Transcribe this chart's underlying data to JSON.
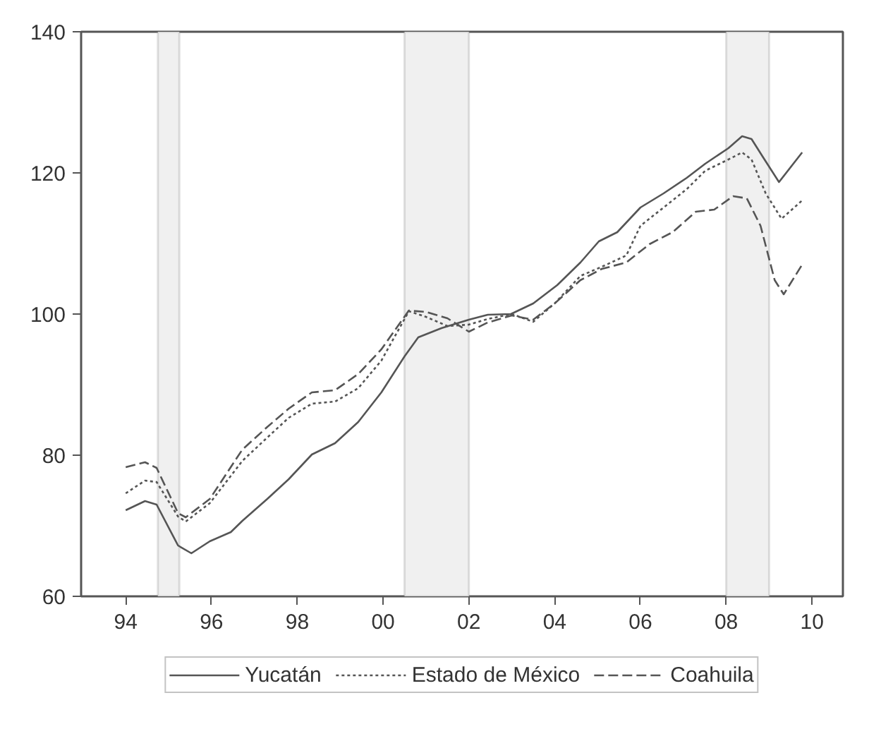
{
  "chart_data": {
    "type": "line",
    "xlim": [
      1992.96,
      2010.72
    ],
    "ylim": [
      60,
      140
    ],
    "xticks": [
      {
        "value": 1994,
        "label": "94"
      },
      {
        "value": 1996,
        "label": "96"
      },
      {
        "value": 1998,
        "label": "98"
      },
      {
        "value": 2000,
        "label": "00"
      },
      {
        "value": 2002,
        "label": "02"
      },
      {
        "value": 2004,
        "label": "04"
      },
      {
        "value": 2006,
        "label": "06"
      },
      {
        "value": 2008,
        "label": "08"
      },
      {
        "value": 2010,
        "label": "10"
      }
    ],
    "yticks": [
      60,
      80,
      100,
      120,
      140
    ],
    "grid": false,
    "legend": "bottom",
    "marker": "none",
    "bands": [
      {
        "axis": "x",
        "from": 1994.75,
        "to": 1995.25,
        "color": "#f0f0f0"
      },
      {
        "axis": "x",
        "from": 2000.5,
        "to": 2002.0,
        "color": "#f0f0f0"
      },
      {
        "axis": "x",
        "from": 2008.0,
        "to": 2009.0,
        "color": "#f0f0f0"
      }
    ],
    "series": [
      {
        "name": "Yucatán",
        "color": "#555555",
        "line_style": "solid",
        "x": [
          1994.0,
          1994.45,
          1994.72,
          1995.22,
          1995.53,
          1995.96,
          1996.45,
          1996.72,
          1997.3,
          1997.8,
          1998.34,
          1998.88,
          1999.42,
          1999.96,
          2000.5,
          2000.82,
          2001.36,
          2002.0,
          2002.44,
          2002.98,
          2003.5,
          2004.06,
          2004.6,
          2005.03,
          2005.46,
          2006.0,
          2006.54,
          2007.08,
          2007.51,
          2008.05,
          2008.37,
          2008.59,
          2008.85,
          2009.23,
          2009.77
        ],
        "values": [
          72.2,
          73.5,
          73.0,
          67.2,
          66.1,
          67.8,
          69.1,
          70.7,
          73.8,
          76.6,
          80.1,
          81.7,
          84.7,
          88.9,
          94.0,
          96.7,
          98.0,
          99.2,
          99.9,
          100.0,
          101.5,
          104.1,
          107.3,
          110.3,
          111.6,
          115.1,
          117.1,
          119.3,
          121.3,
          123.5,
          125.2,
          124.8,
          122.3,
          118.7,
          122.9
        ]
      },
      {
        "name": "Estado de México",
        "color": "#555555",
        "line_style": "dashed",
        "x": [
          1994.0,
          1994.45,
          1994.72,
          1995.22,
          1995.4,
          1995.96,
          1996.72,
          1997.3,
          1997.8,
          1998.34,
          1998.88,
          1999.42,
          1999.96,
          2000.6,
          2001.0,
          2001.5,
          2002.0,
          2002.44,
          2003.0,
          2003.5,
          2004.0,
          2004.6,
          2005.1,
          2005.67,
          2006.0,
          2006.54,
          2007.08,
          2007.51,
          2008.05,
          2008.37,
          2008.59,
          2008.92,
          2009.29,
          2009.77
        ],
        "values": [
          74.6,
          76.4,
          76.2,
          71.3,
          70.6,
          73.2,
          79.2,
          82.5,
          85.3,
          87.3,
          87.6,
          89.5,
          93.4,
          100.4,
          99.6,
          98.3,
          98.5,
          99.3,
          100.0,
          98.9,
          101.5,
          105.4,
          106.7,
          108.3,
          112.5,
          115.1,
          117.7,
          120.3,
          121.9,
          122.9,
          121.9,
          117.1,
          113.5,
          116.1
        ]
      },
      {
        "name": "Coahuila",
        "color": "#555555",
        "line_style": "dashed",
        "x": [
          1994.0,
          1994.45,
          1994.72,
          1995.22,
          1995.4,
          1995.96,
          1996.72,
          1997.3,
          1997.8,
          1998.34,
          1998.88,
          1999.42,
          1999.96,
          2000.6,
          2001.0,
          2001.5,
          2002.0,
          2002.44,
          2003.0,
          2003.5,
          2004.0,
          2004.6,
          2005.1,
          2005.67,
          2006.21,
          2006.75,
          2007.29,
          2007.72,
          2008.16,
          2008.48,
          2008.8,
          2009.13,
          2009.34,
          2009.77
        ],
        "values": [
          78.3,
          79.0,
          78.2,
          71.8,
          71.2,
          73.8,
          80.8,
          84.0,
          86.6,
          88.9,
          89.2,
          91.5,
          95.0,
          100.5,
          100.3,
          99.4,
          97.5,
          98.8,
          99.8,
          99.2,
          101.5,
          104.8,
          106.4,
          107.3,
          109.9,
          111.6,
          114.5,
          114.8,
          116.7,
          116.4,
          112.5,
          104.8,
          102.8,
          107.0
        ]
      }
    ]
  }
}
